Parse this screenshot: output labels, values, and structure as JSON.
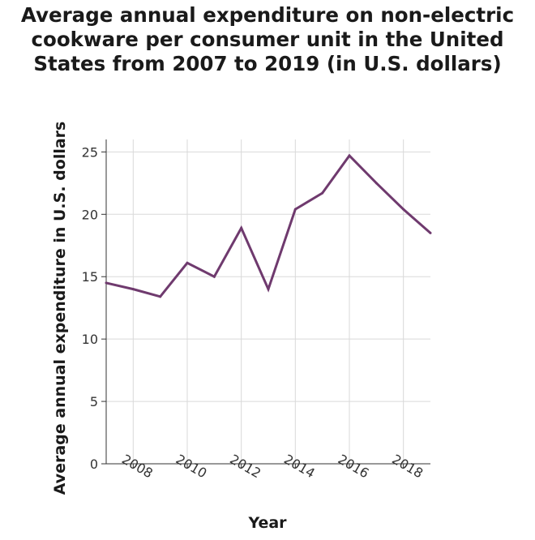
{
  "chart_data": {
    "type": "line",
    "title_lines": [
      "Average annual expenditure on non-electric",
      "cookware per consumer unit in the United",
      "States from 2007 to 2019 (in U.S. dollars)"
    ],
    "xlabel": "Year",
    "ylabel": "Average annual expenditure in U.S. dollars",
    "xlim": [
      2007,
      2019
    ],
    "ylim": [
      0,
      26
    ],
    "x_ticks": [
      2008,
      2010,
      2012,
      2014,
      2016,
      2018
    ],
    "x_tick_labels": [
      "2008",
      "2010",
      "2012",
      "2014",
      "2016",
      "2018"
    ],
    "y_ticks": [
      0,
      5,
      10,
      15,
      20,
      25
    ],
    "y_tick_labels": [
      "0",
      "5",
      "10",
      "15",
      "20",
      "25"
    ],
    "grid": true,
    "series": [
      {
        "x": [
          2007,
          2008,
          2009,
          2010,
          2011,
          2012,
          2013,
          2014,
          2015,
          2016,
          2017,
          2018,
          2019
        ],
        "values": [
          14.5,
          14.0,
          13.4,
          16.1,
          15.0,
          18.9,
          14.0,
          20.4,
          21.7,
          24.7,
          22.5,
          20.4,
          18.5
        ],
        "color": "#6f3a6e"
      }
    ]
  }
}
